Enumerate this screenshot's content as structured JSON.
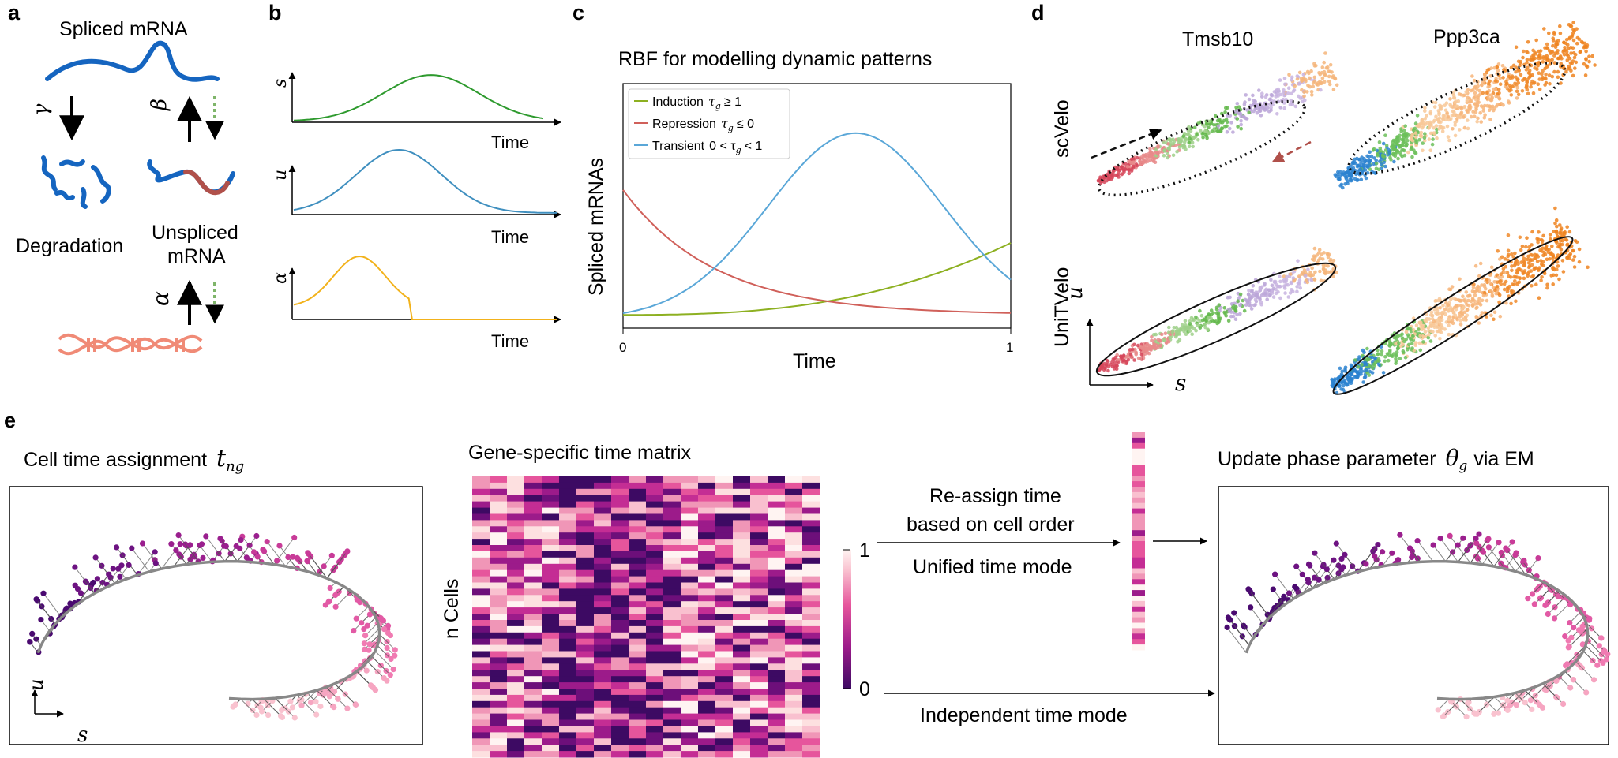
{
  "panels": {
    "a": {
      "letter": "a",
      "spliced_label": "Spliced mRNA",
      "degradation_label": "Degradation",
      "unspliced_line1": "Unspliced",
      "unspliced_line2": "mRNA",
      "gamma": "γ",
      "beta": "β",
      "alpha": "α"
    },
    "b": {
      "letter": "b",
      "plots": [
        {
          "ylabel": "s",
          "xlabel": "Time",
          "color": "#2e9a2e"
        },
        {
          "ylabel": "u",
          "xlabel": "Time",
          "color": "#3f8fbf"
        },
        {
          "ylabel": "α",
          "xlabel": "Time",
          "color": "#f2b21b"
        }
      ]
    },
    "c": {
      "letter": "c",
      "title": "RBF for modelling dynamic patterns",
      "xlabel": "Time",
      "ylabel": "Spliced mRNAs",
      "x_ticks": [
        "0",
        "1"
      ],
      "legend": [
        {
          "label": "Induction",
          "cond": "≥ 1",
          "color": "#8db021"
        },
        {
          "label": "Repression",
          "cond": "≤ 0",
          "color": "#d0605a"
        },
        {
          "label": "Transient",
          "cond": "0 < τ",
          "cond2": "< 1",
          "color": "#5aa7d8"
        }
      ]
    },
    "d": {
      "letter": "d",
      "gene1": "Tmsb10",
      "gene2": "Ppp3ca",
      "method1": "scVelo",
      "method2": "UniTVelo",
      "u_axis": "u",
      "s_axis": "s"
    },
    "e": {
      "letter": "e",
      "cell_time_label": "Cell time assignment",
      "cell_time_symbol": "t",
      "cell_time_sub": "ng",
      "matrix_title": "Gene-specific time matrix",
      "ncells_label": "n Cells",
      "colorbar_max": "1",
      "colorbar_min": "0",
      "reassign_line1": "Re-assign time",
      "reassign_line2": "based on cell order",
      "unified_label": "Unified time mode",
      "independent_label": "Independent time mode",
      "update_label": "Update phase parameter",
      "theta_symbol": "θ",
      "theta_sub": "g",
      "via_em": "via EM",
      "u_axis": "u",
      "s_axis": "s"
    }
  },
  "chart_data": {
    "type": "line",
    "title": "RBF for modelling dynamic patterns",
    "xlabel": "Time",
    "ylabel": "Spliced mRNAs",
    "xlim": [
      0,
      1
    ],
    "series": [
      {
        "name": "Induction τg ≥ 1",
        "x": [
          0,
          0.2,
          0.4,
          0.6,
          0.8,
          1.0
        ],
        "y": [
          0.02,
          0.03,
          0.06,
          0.12,
          0.24,
          0.4
        ]
      },
      {
        "name": "Repression τg ≤ 0",
        "x": [
          0,
          0.2,
          0.4,
          0.6,
          0.8,
          1.0
        ],
        "y": [
          0.68,
          0.3,
          0.13,
          0.06,
          0.03,
          0.02
        ]
      },
      {
        "name": "Transient 0 < τg < 1",
        "x": [
          0,
          0.2,
          0.4,
          0.6,
          0.8,
          1.0
        ],
        "y": [
          0.04,
          0.3,
          0.8,
          1.0,
          0.78,
          0.38
        ]
      }
    ]
  }
}
